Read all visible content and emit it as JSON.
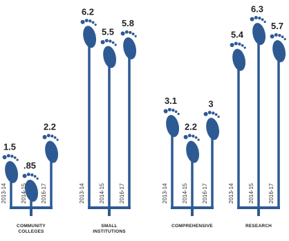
{
  "chart_data": {
    "type": "bar",
    "title": "",
    "xlabel": "",
    "ylabel": "",
    "ylim": [
      0,
      6.5
    ],
    "colors": {
      "stem": "#2e5a93",
      "text": "#222222"
    },
    "icon": "footprint-icon",
    "groups": [
      {
        "label_lines": [
          "COMMUNITY",
          "COLLEGES"
        ],
        "items": [
          {
            "year": "2013-14",
            "value": 1.5,
            "label": "1.5"
          },
          {
            "year": "2014-15",
            "value": 0.85,
            "label": ".85"
          },
          {
            "year": "2016-17",
            "value": 2.2,
            "label": "2.2"
          }
        ]
      },
      {
        "label_lines": [
          "SMALL",
          "INSTITUTIONS"
        ],
        "items": [
          {
            "year": "2013-14",
            "value": 6.2,
            "label": "6.2"
          },
          {
            "year": "2014-15",
            "value": 5.5,
            "label": "5.5"
          },
          {
            "year": "2016-17",
            "value": 5.8,
            "label": "5.8"
          }
        ]
      },
      {
        "label_lines": [
          "COMPREHENSIVE"
        ],
        "items": [
          {
            "year": "2013-14",
            "value": 3.1,
            "label": "3.1"
          },
          {
            "year": "2014-15",
            "value": 2.2,
            "label": "2.2"
          },
          {
            "year": "2016-17",
            "value": 3,
            "label": "3"
          }
        ]
      },
      {
        "label_lines": [
          "RESEARCH"
        ],
        "items": [
          {
            "year": "2013-14",
            "value": 5.4,
            "label": "5.4"
          },
          {
            "year": "2014-15",
            "value": 6.3,
            "label": "6.3"
          },
          {
            "year": "2016-17",
            "value": 5.7,
            "label": "5.7"
          }
        ]
      }
    ]
  }
}
